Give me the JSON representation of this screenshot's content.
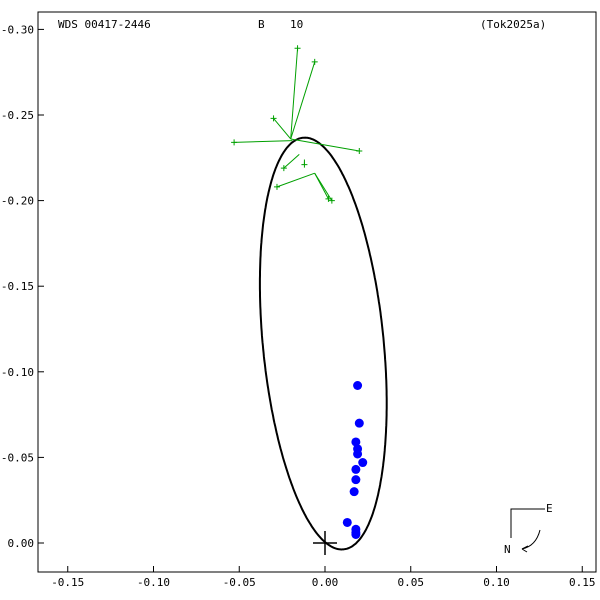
{
  "header": {
    "wds": "WDS 00417-2446",
    "component": "B",
    "grade": "10",
    "reference": "(Tok2025a)"
  },
  "compass": {
    "east": "E",
    "north": "N"
  },
  "chart_data": {
    "type": "scatter",
    "title": "",
    "xlabel": "",
    "ylabel": "",
    "xlim": [
      -0.17,
      0.16
    ],
    "ylim": [
      -0.02,
      0.31
    ],
    "x_axis_reversed": false,
    "y_axis_reversed": true,
    "xticks": [
      -0.15,
      -0.1,
      -0.05,
      0.0,
      0.05,
      0.1,
      0.15
    ],
    "xtick_labels": [
      "-0.15",
      "-0.10",
      "-0.05",
      "0.00",
      "0.05",
      "0.10",
      "0.15"
    ],
    "yticks": [
      0.3,
      0.25,
      0.2,
      0.15,
      0.1,
      0.05,
      0.0
    ],
    "ytick_labels": [
      "-0.30",
      "-0.25",
      "-0.20",
      "-0.15",
      "-0.10",
      "-0.05",
      "0.00"
    ],
    "orbit": {
      "center": [
        -0.001,
        0.1165
      ],
      "semi_major": 0.1208,
      "semi_minor": 0.0352,
      "major_axis_angle_deg": 95.6
    },
    "primary_star": [
      0.0,
      0.0
    ],
    "series": [
      {
        "points": [
          [
            0.019,
            0.092
          ],
          [
            0.02,
            0.07
          ],
          [
            0.018,
            0.059
          ],
          [
            0.019,
            0.055
          ],
          [
            0.019,
            0.052
          ],
          [
            0.022,
            0.047
          ],
          [
            0.018,
            0.043
          ],
          [
            0.018,
            0.037
          ],
          [
            0.017,
            0.03
          ],
          [
            0.013,
            0.012
          ],
          [
            0.018,
            0.008
          ],
          [
            0.018,
            0.006
          ],
          [
            0.018,
            0.005
          ]
        ]
      },
      {
        "points": [
          [
            -0.053,
            0.234
          ],
          [
            -0.016,
            0.289
          ],
          [
            -0.006,
            0.281
          ],
          [
            -0.03,
            0.248
          ],
          [
            -0.024,
            0.219
          ],
          [
            -0.012,
            0.221
          ],
          [
            -0.028,
            0.208
          ],
          [
            0.002,
            0.201
          ],
          [
            0.004,
            0.2
          ],
          [
            0.02,
            0.229
          ]
        ],
        "residual_anchors": [
          [
            -0.019,
            0.235
          ],
          [
            -0.02,
            0.236
          ],
          [
            -0.02,
            0.236
          ],
          [
            -0.02,
            0.236
          ],
          [
            -0.015,
            0.227
          ],
          [
            -0.012,
            0.224
          ],
          [
            -0.006,
            0.216
          ],
          [
            -0.006,
            0.216
          ],
          [
            -0.006,
            0.216
          ],
          [
            -0.02,
            0.236
          ]
        ]
      }
    ],
    "colors": {
      "orbit": "#000000",
      "measures_a": "#0000ff",
      "measures_b": "#00a000",
      "axes": "#000000"
    }
  }
}
